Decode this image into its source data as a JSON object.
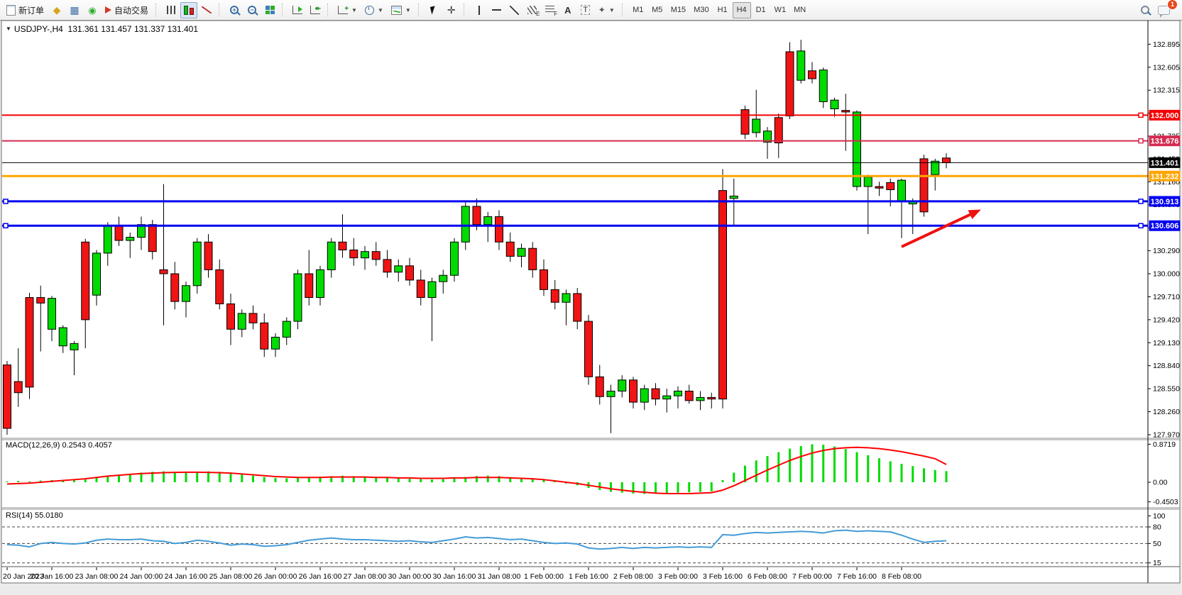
{
  "toolbar": {
    "new_order": "新订单",
    "auto_trading": "自动交易",
    "timeframes": [
      "M1",
      "M5",
      "M15",
      "M30",
      "H1",
      "H4",
      "D1",
      "W1",
      "MN"
    ],
    "active_timeframe": "H4",
    "notification_badge": "1"
  },
  "chart": {
    "title_symbol": "USDJPY-,H4",
    "title_quotes": "131.361 131.457 131.337 131.401"
  },
  "chart_data": [
    {
      "type": "candlestick",
      "symbol": "USDJPY-",
      "timeframe": "H4",
      "title": "USDJPY-,H4 131.361 131.457 131.337 131.401",
      "open": 131.361,
      "high": 131.457,
      "low": 131.337,
      "close": 131.401,
      "grid": false,
      "ylim": [
        127.97,
        133.18
      ],
      "y_ticks": [
        "132.895",
        "132.605",
        "132.315",
        "132.025",
        "131.735",
        "131.450",
        "131.160",
        "130.870",
        "130.580",
        "130.290",
        "130.000",
        "129.710",
        "129.420",
        "129.130",
        "128.840",
        "128.550",
        "128.260",
        "127.970"
      ],
      "x_labels": [
        "20 Jan 2023",
        "20 Jan 16:00",
        "23 Jan 08:00",
        "24 Jan 00:00",
        "24 Jan 16:00",
        "25 Jan 08:00",
        "26 Jan 00:00",
        "26 Jan 16:00",
        "27 Jan 08:00",
        "30 Jan 00:00",
        "30 Jan 16:00",
        "31 Jan 08:00",
        "1 Feb 00:00",
        "1 Feb 16:00",
        "2 Feb 08:00",
        "3 Feb 00:00",
        "3 Feb 16:00",
        "6 Feb 08:00",
        "7 Feb 00:00",
        "7 Feb 16:00",
        "8 Feb 08:00"
      ],
      "candles_per_label": 4,
      "bull_color": "#00DB00",
      "bear_color": "#F01414",
      "ohlc": [
        [
          128.85,
          128.9,
          127.97,
          128.05
        ],
        [
          128.64,
          129.06,
          128.32,
          128.5
        ],
        [
          129.7,
          129.76,
          128.42,
          128.57
        ],
        [
          129.7,
          129.85,
          129.02,
          129.63
        ],
        [
          129.3,
          129.72,
          129.15,
          129.69
        ],
        [
          129.09,
          129.35,
          129.0,
          129.32
        ],
        [
          129.04,
          129.15,
          128.72,
          129.12
        ],
        [
          130.4,
          130.44,
          129.06,
          129.42
        ],
        [
          129.73,
          130.3,
          129.6,
          130.26
        ],
        [
          130.26,
          130.65,
          130.1,
          130.6
        ],
        [
          130.6,
          130.72,
          130.35,
          130.42
        ],
        [
          130.42,
          130.52,
          130.2,
          130.46
        ],
        [
          130.46,
          130.72,
          130.3,
          130.62
        ],
        [
          130.62,
          130.68,
          130.18,
          130.28
        ],
        [
          130.05,
          131.13,
          129.35,
          130.0
        ],
        [
          130.0,
          130.15,
          129.55,
          129.65
        ],
        [
          129.65,
          129.9,
          129.45,
          129.85
        ],
        [
          129.85,
          130.45,
          129.75,
          130.4
        ],
        [
          130.4,
          130.5,
          129.95,
          130.05
        ],
        [
          130.05,
          130.18,
          129.55,
          129.62
        ],
        [
          129.62,
          129.75,
          129.1,
          129.3
        ],
        [
          129.3,
          129.55,
          129.2,
          129.5
        ],
        [
          129.5,
          129.6,
          129.3,
          129.38
        ],
        [
          129.38,
          129.5,
          128.95,
          129.05
        ],
        [
          129.05,
          129.25,
          128.95,
          129.2
        ],
        [
          129.2,
          129.45,
          129.1,
          129.4
        ],
        [
          129.4,
          130.05,
          129.3,
          130.0
        ],
        [
          130.0,
          130.3,
          129.6,
          129.7
        ],
        [
          129.7,
          130.1,
          129.6,
          130.05
        ],
        [
          130.05,
          130.45,
          129.95,
          130.4
        ],
        [
          130.4,
          130.75,
          130.2,
          130.3
        ],
        [
          130.3,
          130.45,
          130.1,
          130.2
        ],
        [
          130.2,
          130.35,
          130.05,
          130.28
        ],
        [
          130.28,
          130.4,
          130.1,
          130.18
        ],
        [
          130.18,
          130.3,
          129.95,
          130.02
        ],
        [
          130.02,
          130.18,
          129.9,
          130.1
        ],
        [
          130.1,
          130.2,
          129.85,
          129.92
        ],
        [
          129.92,
          130.05,
          129.6,
          129.7
        ],
        [
          129.7,
          129.95,
          129.15,
          129.9
        ],
        [
          129.9,
          130.05,
          129.75,
          129.98
        ],
        [
          129.98,
          130.45,
          129.9,
          130.4
        ],
        [
          130.4,
          130.9,
          130.3,
          130.85
        ],
        [
          130.85,
          130.95,
          130.55,
          130.62
        ],
        [
          130.62,
          130.78,
          130.4,
          130.72
        ],
        [
          130.72,
          130.8,
          130.3,
          130.4
        ],
        [
          130.4,
          130.52,
          130.15,
          130.22
        ],
        [
          130.22,
          130.38,
          130.08,
          130.32
        ],
        [
          130.32,
          130.4,
          129.95,
          130.05
        ],
        [
          130.05,
          130.18,
          129.72,
          129.8
        ],
        [
          129.8,
          129.92,
          129.55,
          129.64
        ],
        [
          129.64,
          129.8,
          129.35,
          129.75
        ],
        [
          129.75,
          129.82,
          129.3,
          129.4
        ],
        [
          129.4,
          129.48,
          128.6,
          128.7
        ],
        [
          128.7,
          128.85,
          128.35,
          128.45
        ],
        [
          128.45,
          128.6,
          127.99,
          128.52
        ],
        [
          128.52,
          128.72,
          128.44,
          128.66
        ],
        [
          128.66,
          128.7,
          128.3,
          128.38
        ],
        [
          128.38,
          128.6,
          128.28,
          128.55
        ],
        [
          128.55,
          128.62,
          128.34,
          128.42
        ],
        [
          128.42,
          128.55,
          128.25,
          128.46
        ],
        [
          128.46,
          128.58,
          128.3,
          128.52
        ],
        [
          128.52,
          128.6,
          128.36,
          128.4
        ],
        [
          128.4,
          128.52,
          128.28,
          128.44
        ],
        [
          128.44,
          128.5,
          128.3,
          128.42
        ],
        [
          131.05,
          131.32,
          128.3,
          128.42
        ],
        [
          130.95,
          131.2,
          130.6,
          130.98
        ],
        [
          132.07,
          132.12,
          131.7,
          131.76
        ],
        [
          131.78,
          132.32,
          131.72,
          131.95
        ],
        [
          131.66,
          131.85,
          131.45,
          131.8
        ],
        [
          131.97,
          132.02,
          131.46,
          131.65
        ],
        [
          132.8,
          132.92,
          131.95,
          131.99
        ],
        [
          132.44,
          132.95,
          132.4,
          132.81
        ],
        [
          132.56,
          132.67,
          132.4,
          132.46
        ],
        [
          132.17,
          132.6,
          132.09,
          132.57
        ],
        [
          132.08,
          132.22,
          131.98,
          132.19
        ],
        [
          132.06,
          132.27,
          131.55,
          132.04
        ],
        [
          131.1,
          132.06,
          131.05,
          132.04
        ],
        [
          131.1,
          131.25,
          130.5,
          131.22
        ],
        [
          131.1,
          131.16,
          130.98,
          131.08
        ],
        [
          131.15,
          131.2,
          130.85,
          131.06
        ],
        [
          130.92,
          131.2,
          130.45,
          131.18
        ],
        [
          130.88,
          130.95,
          130.5,
          130.92
        ],
        [
          131.45,
          131.5,
          130.72,
          130.78
        ],
        [
          131.25,
          131.45,
          131.05,
          131.42
        ],
        [
          131.46,
          131.52,
          131.33,
          131.4
        ]
      ],
      "levels": [
        {
          "price": 132.0,
          "label": "132.000",
          "color": "#F40000",
          "width": 2,
          "handles": [
            "right"
          ]
        },
        {
          "price": 131.676,
          "label": "131.676",
          "color": "#D42B50",
          "width": 2,
          "handles": [
            "right"
          ]
        },
        {
          "price": 131.232,
          "label": "131.232",
          "color": "#FFA500",
          "width": 3,
          "handles": []
        },
        {
          "price": 130.913,
          "label": "130.913",
          "color": "#0000F0",
          "width": 3,
          "handles": [
            "left",
            "right"
          ]
        },
        {
          "price": 130.606,
          "label": "130.606",
          "color": "#0000F0",
          "width": 3,
          "handles": [
            "left",
            "right"
          ]
        }
      ],
      "current_price": {
        "value": 131.401,
        "label": "131.401",
        "color": "#000000"
      },
      "arrow": {
        "from": {
          "i": 80.0,
          "price": 130.34
        },
        "to": {
          "i": 87.1,
          "price": 130.81
        },
        "color": "#EE1111"
      }
    },
    {
      "type": "bar",
      "name": "MACD",
      "display": "MACD(12,26,9) 0.2543 0.4057",
      "params": "12,26,9",
      "current_macd": 0.2543,
      "current_signal": 0.4057,
      "y_ticks": [
        "0.8719",
        "0.00",
        "-0.4503"
      ],
      "bar_color": "#00DB00",
      "signal_color": "#FF0000",
      "histogram": [
        0.02,
        0.03,
        0.02,
        0.04,
        0.05,
        0.04,
        0.05,
        0.06,
        0.1,
        0.14,
        0.17,
        0.19,
        0.22,
        0.24,
        0.25,
        0.24,
        0.23,
        0.24,
        0.25,
        0.24,
        0.21,
        0.18,
        0.15,
        0.12,
        0.1,
        0.09,
        0.1,
        0.12,
        0.13,
        0.14,
        0.15,
        0.14,
        0.12,
        0.11,
        0.1,
        0.09,
        0.08,
        0.07,
        0.06,
        0.07,
        0.09,
        0.12,
        0.14,
        0.15,
        0.14,
        0.12,
        0.1,
        0.08,
        0.05,
        0.02,
        -0.03,
        -0.07,
        -0.13,
        -0.18,
        -0.22,
        -0.24,
        -0.26,
        -0.27,
        -0.26,
        -0.25,
        -0.24,
        -0.23,
        -0.22,
        -0.21,
        0.05,
        0.22,
        0.38,
        0.5,
        0.6,
        0.69,
        0.77,
        0.83,
        0.87,
        0.86,
        0.82,
        0.76,
        0.69,
        0.62,
        0.55,
        0.48,
        0.42,
        0.37,
        0.32,
        0.28,
        0.2543
      ],
      "signal": [
        -0.04,
        -0.03,
        -0.02,
        0.0,
        0.02,
        0.04,
        0.06,
        0.08,
        0.11,
        0.14,
        0.16,
        0.18,
        0.2,
        0.21,
        0.22,
        0.225,
        0.23,
        0.23,
        0.225,
        0.22,
        0.21,
        0.19,
        0.17,
        0.15,
        0.13,
        0.12,
        0.11,
        0.11,
        0.11,
        0.12,
        0.12,
        0.12,
        0.12,
        0.11,
        0.11,
        0.1,
        0.1,
        0.09,
        0.09,
        0.09,
        0.1,
        0.1,
        0.11,
        0.11,
        0.11,
        0.1,
        0.09,
        0.08,
        0.06,
        0.03,
        0.0,
        -0.03,
        -0.07,
        -0.11,
        -0.15,
        -0.18,
        -0.21,
        -0.23,
        -0.25,
        -0.26,
        -0.26,
        -0.26,
        -0.25,
        -0.24,
        -0.18,
        -0.08,
        0.04,
        0.16,
        0.28,
        0.39,
        0.5,
        0.59,
        0.67,
        0.73,
        0.77,
        0.79,
        0.8,
        0.79,
        0.77,
        0.74,
        0.7,
        0.65,
        0.6,
        0.54,
        0.4057
      ]
    },
    {
      "type": "line",
      "name": "RSI",
      "display": "RSI(14) 55.0180",
      "params": "14",
      "current": 55.018,
      "y_ticks": [
        "100",
        "80",
        "50",
        "15"
      ],
      "levels": [
        80,
        50,
        15
      ],
      "line_color": "#459BD8",
      "values": [
        48,
        47,
        44,
        50,
        52,
        50,
        49,
        51,
        56,
        58,
        57,
        57,
        58,
        55,
        54,
        50,
        52,
        56,
        54,
        51,
        47,
        49,
        48,
        45,
        46,
        48,
        52,
        56,
        58,
        60,
        58,
        57,
        57,
        56,
        55,
        54,
        55,
        53,
        52,
        55,
        58,
        62,
        60,
        61,
        59,
        57,
        58,
        55,
        52,
        50,
        51,
        49,
        42,
        40,
        41,
        43,
        41,
        43,
        42,
        43,
        44,
        43,
        44,
        43,
        66,
        65,
        68,
        70,
        69,
        70,
        71,
        72,
        71,
        69,
        73,
        74,
        72,
        73,
        72,
        71,
        65,
        58,
        52,
        54,
        55.018
      ]
    }
  ]
}
